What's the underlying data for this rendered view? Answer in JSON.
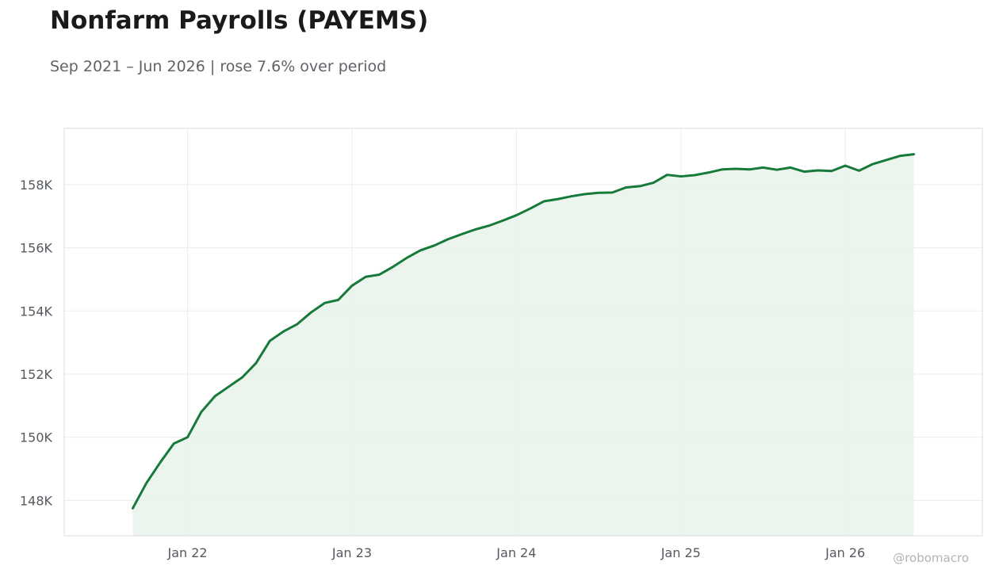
{
  "title": "Nonfarm Payrolls (PAYEMS)",
  "subtitle": "Sep 2021 – Jun 2026 | rose 7.6% over period",
  "watermark": "@robomacro",
  "colors": {
    "line": "#177a3b",
    "fill": "#e6f2ea",
    "grid": "#ececec",
    "axis": "#dddddd",
    "tick_text": "#555a60"
  },
  "chart_data": {
    "type": "area",
    "x_start": "2021-09",
    "y": [
      147750,
      148550,
      149200,
      149800,
      150000,
      150800,
      151300,
      151600,
      151900,
      152350,
      153050,
      153350,
      153580,
      153950,
      154250,
      154350,
      154800,
      155080,
      155150,
      155400,
      155680,
      155920,
      156070,
      156270,
      156430,
      156580,
      156700,
      156860,
      157030,
      157240,
      157470,
      157540,
      157630,
      157700,
      157740,
      157750,
      157910,
      157950,
      158060,
      158310,
      158260,
      158300,
      158380,
      158480,
      158500,
      158480,
      158540,
      158470,
      158540,
      158410,
      158450,
      158430,
      158600,
      158440,
      158650,
      158780,
      158910,
      158960
    ],
    "x_ticks": [
      {
        "date": "2022-01",
        "label": "Jan 22"
      },
      {
        "date": "2023-01",
        "label": "Jan 23"
      },
      {
        "date": "2024-01",
        "label": "Jan 24"
      },
      {
        "date": "2025-01",
        "label": "Jan 25"
      },
      {
        "date": "2026-01",
        "label": "Jan 26"
      }
    ],
    "y_ticks": [
      {
        "value": 148000,
        "label": "148K"
      },
      {
        "value": 150000,
        "label": "150K"
      },
      {
        "value": 152000,
        "label": "152K"
      },
      {
        "value": 154000,
        "label": "154K"
      },
      {
        "value": 156000,
        "label": "156K"
      },
      {
        "value": 158000,
        "label": "158K"
      }
    ],
    "xlim": [
      "2021-04",
      "2026-11"
    ],
    "ylim": [
      146880,
      159780
    ],
    "grid": true,
    "legend": false
  }
}
